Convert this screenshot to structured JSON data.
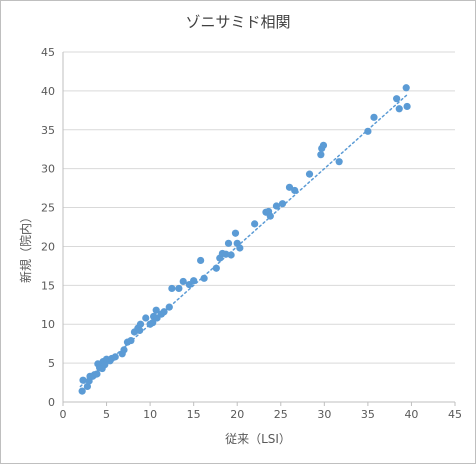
{
  "chart_data": {
    "type": "scatter",
    "title": "ゾニサミド相関",
    "xlabel": "従来（LSI）",
    "ylabel": "新規（院内）",
    "xlim": [
      0,
      45
    ],
    "ylim": [
      0,
      45
    ],
    "xticks": [
      0,
      5,
      10,
      15,
      20,
      25,
      30,
      35,
      40,
      45
    ],
    "yticks": [
      0,
      5,
      10,
      15,
      20,
      25,
      30,
      35,
      40,
      45
    ],
    "grid": "horizontal",
    "marker_color": "#5b9bd5",
    "trendline": {
      "style": "dotted",
      "color": "#5b9bd5",
      "x": [
        2.0,
        39.5
      ],
      "y": [
        2.0,
        39.5
      ]
    },
    "series": [
      {
        "points": [
          [
            2.2,
            1.4
          ],
          [
            2.3,
            2.8
          ],
          [
            2.8,
            2.0
          ],
          [
            3.0,
            2.7
          ],
          [
            3.1,
            3.3
          ],
          [
            3.4,
            3.3
          ],
          [
            3.6,
            3.5
          ],
          [
            3.9,
            3.6
          ],
          [
            4.0,
            4.9
          ],
          [
            4.2,
            4.4
          ],
          [
            4.5,
            4.3
          ],
          [
            4.6,
            5.2
          ],
          [
            4.8,
            4.8
          ],
          [
            5.0,
            5.5
          ],
          [
            5.4,
            5.3
          ],
          [
            5.6,
            5.6
          ],
          [
            6.0,
            5.8
          ],
          [
            6.8,
            6.2
          ],
          [
            7.0,
            6.7
          ],
          [
            7.4,
            7.7
          ],
          [
            7.8,
            7.9
          ],
          [
            8.2,
            9.0
          ],
          [
            8.6,
            9.5
          ],
          [
            8.8,
            9.2
          ],
          [
            8.9,
            10.0
          ],
          [
            9.5,
            10.8
          ],
          [
            10.0,
            10.0
          ],
          [
            10.3,
            10.2
          ],
          [
            10.4,
            11.0
          ],
          [
            10.7,
            11.8
          ],
          [
            10.8,
            10.8
          ],
          [
            11.3,
            11.3
          ],
          [
            11.6,
            11.6
          ],
          [
            12.2,
            12.2
          ],
          [
            12.5,
            14.6
          ],
          [
            13.3,
            14.6
          ],
          [
            13.8,
            15.5
          ],
          [
            14.5,
            15.1
          ],
          [
            15.0,
            15.6
          ],
          [
            15.8,
            18.2
          ],
          [
            16.2,
            15.9
          ],
          [
            17.6,
            17.2
          ],
          [
            18.0,
            18.5
          ],
          [
            18.3,
            19.1
          ],
          [
            18.7,
            19.0
          ],
          [
            19.0,
            20.4
          ],
          [
            19.3,
            18.9
          ],
          [
            19.8,
            21.7
          ],
          [
            20.0,
            20.4
          ],
          [
            20.3,
            19.8
          ],
          [
            22.0,
            22.9
          ],
          [
            23.3,
            24.4
          ],
          [
            23.6,
            24.5
          ],
          [
            23.8,
            23.9
          ],
          [
            24.5,
            25.2
          ],
          [
            25.2,
            25.5
          ],
          [
            26.0,
            27.6
          ],
          [
            26.6,
            27.2
          ],
          [
            28.3,
            29.3
          ],
          [
            29.6,
            31.8
          ],
          [
            29.7,
            32.6
          ],
          [
            29.9,
            33.0
          ],
          [
            31.7,
            30.9
          ],
          [
            35.0,
            34.8
          ],
          [
            35.7,
            36.6
          ],
          [
            38.3,
            39.0
          ],
          [
            38.6,
            37.7
          ],
          [
            39.4,
            40.4
          ],
          [
            39.5,
            38.0
          ]
        ]
      }
    ]
  }
}
